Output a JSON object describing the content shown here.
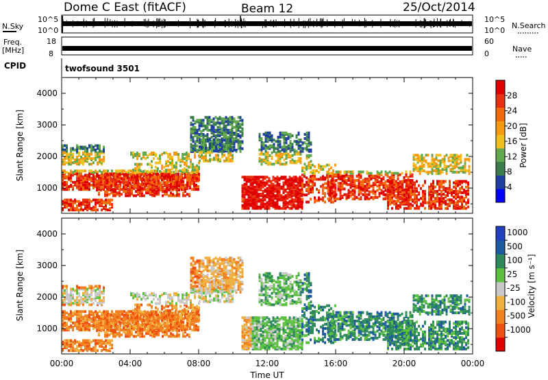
{
  "header": {
    "station": "Dome C East (fitACF)",
    "beam": "Beam 12",
    "date": "25/Oct/2014"
  },
  "panels": {
    "nsky_label": "N.Sky",
    "nsky_ticks": [
      "10^5",
      "10^0"
    ],
    "nsearch_label": "N.Search",
    "nsearch_ticks": [
      "10^5",
      "10^0"
    ],
    "freq_label_1": "Freq.",
    "freq_label_2": "[MHz]",
    "freq_ticks": [
      "18",
      "8"
    ],
    "nave_label": "Nave",
    "nave_ticks": [
      "60",
      "0"
    ],
    "cpid_label": "CPID",
    "cpid_value": "twofsound 3501"
  },
  "colors": {
    "power_scale": [
      "#0000ff",
      "#1e3fa0",
      "#3a7d4a",
      "#62a84c",
      "#f0c020",
      "#f59a10",
      "#f26a0a",
      "#e83010",
      "#e00000"
    ],
    "velocity_scale": [
      "#2040c0",
      "#1e5aa0",
      "#2e8a5a",
      "#5cc040",
      "#c8c8c8",
      "#f0b040",
      "#f08020",
      "#f05010",
      "#e00000"
    ]
  },
  "chart_data": [
    {
      "type": "heatmap",
      "title": "",
      "ylabel": "Slant Range [km]",
      "ylim": [
        200,
        4500
      ],
      "y_ticks": [
        "1000",
        "2000",
        "3000",
        "4000"
      ],
      "colorbar": {
        "label": "Power [dB]",
        "ticks": [
          "4",
          "8",
          "12",
          "16",
          "20",
          "24",
          "28"
        ],
        "range": [
          0,
          32
        ]
      }
    },
    {
      "type": "heatmap",
      "title": "",
      "xlabel": "Time UT",
      "ylabel": "Slant Range [km]",
      "ylim": [
        200,
        4500
      ],
      "y_ticks": [
        "1000",
        "2000",
        "3000",
        "4000"
      ],
      "x_ticks": [
        "00:00",
        "04:00",
        "08:00",
        "12:00",
        "16:00",
        "20:00",
        "00:00"
      ],
      "colorbar": {
        "label": "Velocity [m s⁻¹]",
        "ticks": [
          "1000",
          "500",
          "100",
          "25",
          "-25",
          "-100",
          "-500",
          "-1000"
        ]
      }
    }
  ]
}
